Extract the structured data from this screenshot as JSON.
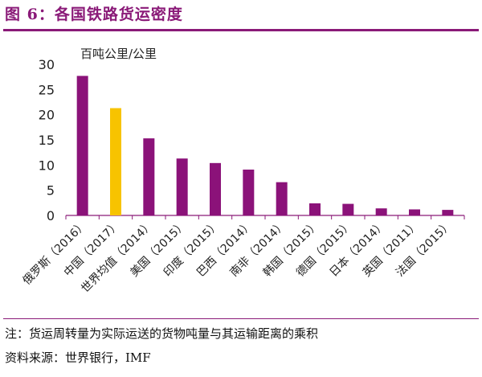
{
  "header": {
    "title": "图 6：各国铁路货运密度"
  },
  "chart_data": {
    "type": "bar",
    "unit_label": "百吨公里/公里",
    "categories": [
      "俄罗斯（2016）",
      "中国（2017）",
      "世界均值（2014）",
      "美国（2015）",
      "印度（2015）",
      "巴西（2014）",
      "南非（2014）",
      "韩国（2015）",
      "德国（2015）",
      "日本（2014）",
      "英国（2011）",
      "法国（2015）"
    ],
    "values": [
      27.7,
      21.3,
      15.3,
      11.3,
      10.4,
      9.1,
      6.6,
      2.4,
      2.3,
      1.4,
      1.2,
      1.1
    ],
    "highlight_index": 1,
    "ylim": [
      0,
      30
    ],
    "yticks": [
      0,
      5,
      10,
      15,
      20,
      25,
      30
    ],
    "colors": {
      "bar": "#8b1279",
      "highlight": "#f7c300",
      "title": "#8a1a78"
    },
    "grid": false
  },
  "footer": {
    "note": "注：货运周转量为实际运送的货物吨量与其运输距离的乘积",
    "source": "资料来源：世界银行，IMF"
  }
}
